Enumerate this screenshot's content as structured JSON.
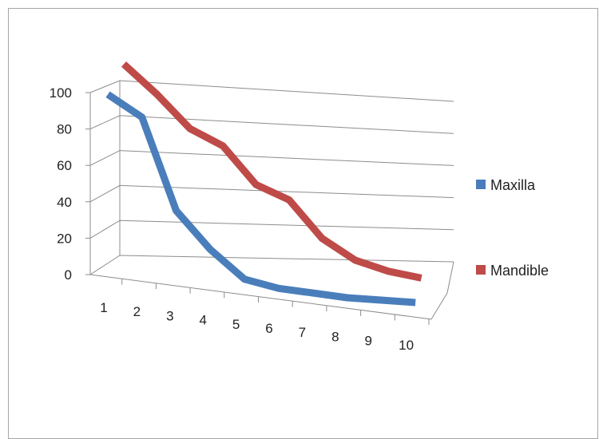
{
  "chart_data": {
    "type": "line",
    "x": [
      1,
      2,
      3,
      4,
      5,
      6,
      7,
      8,
      9,
      10
    ],
    "series": [
      {
        "name": "Maxilla",
        "color": "#4a7ebb",
        "values": [
          82,
          73,
          33,
          17,
          5,
          2,
          1,
          0,
          0,
          0
        ]
      },
      {
        "name": "Mandible",
        "color": "#be4b48",
        "values": [
          95,
          82,
          67,
          60,
          43,
          37,
          20,
          11,
          7,
          5
        ]
      }
    ],
    "y_ticks": [
      "0",
      "20",
      "40",
      "60",
      "80",
      "100"
    ],
    "x_ticks": [
      "1",
      "2",
      "3",
      "4",
      "5",
      "6",
      "7",
      "8",
      "9",
      "10"
    ],
    "ylim": [
      0,
      100
    ],
    "grid": true,
    "legend": "right",
    "style": "3-D line"
  }
}
